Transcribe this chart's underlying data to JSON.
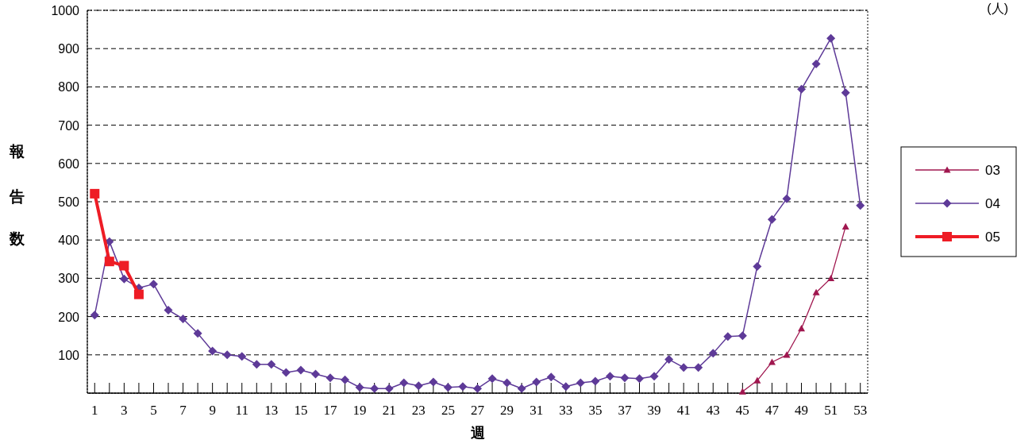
{
  "chart_data": {
    "type": "line",
    "xlabel": "週",
    "ylabel": "報告数",
    "annotations": [
      "(人)"
    ],
    "xlim": [
      0.5,
      53.5
    ],
    "xticks": [
      1,
      {
        "value": 2,
        "label": null
      },
      3,
      {
        "value": 4,
        "label": null
      },
      5,
      {
        "value": 6,
        "label": null
      },
      7,
      {
        "value": 8,
        "label": null
      },
      9,
      {
        "value": 10,
        "label": null
      },
      11,
      {
        "value": 12,
        "label": null
      },
      13,
      {
        "value": 14,
        "label": null
      },
      15,
      {
        "value": 16,
        "label": null
      },
      17,
      {
        "value": 18,
        "label": null
      },
      19,
      {
        "value": 20,
        "label": null
      },
      21,
      {
        "value": 22,
        "label": null
      },
      23,
      {
        "value": 24,
        "label": null
      },
      25,
      {
        "value": 26,
        "label": null
      },
      27,
      {
        "value": 28,
        "label": null
      },
      29,
      {
        "value": 30,
        "label": null
      },
      31,
      {
        "value": 32,
        "label": null
      },
      33,
      {
        "value": 34,
        "label": null
      },
      35,
      {
        "value": 36,
        "label": null
      },
      37,
      {
        "value": 38,
        "label": null
      },
      39,
      {
        "value": 40,
        "label": null
      },
      41,
      {
        "value": 42,
        "label": null
      },
      43,
      {
        "value": 44,
        "label": null
      },
      45,
      {
        "value": 46,
        "label": null
      },
      47,
      {
        "value": 48,
        "label": null
      },
      49,
      {
        "value": 50,
        "label": null
      },
      51,
      {
        "value": 52,
        "label": null
      },
      53
    ],
    "ylim": [
      0,
      1000
    ],
    "yticks": [
      100,
      200,
      300,
      400,
      500,
      600,
      700,
      800,
      900,
      1000
    ],
    "grid": "y",
    "legend": "right",
    "line_style": "solid",
    "series": [
      {
        "name": "03",
        "color": "#a0174f",
        "marker": "triangle",
        "x": [
          45,
          46,
          47,
          48,
          49,
          50,
          51,
          52
        ],
        "values": [
          4,
          33,
          81,
          100,
          169,
          263,
          300,
          435
        ]
      },
      {
        "name": "04",
        "color": "#5e3a98",
        "marker": "diamond",
        "x": [
          1,
          2,
          3,
          4,
          5,
          6,
          7,
          8,
          9,
          10,
          11,
          12,
          13,
          14,
          15,
          16,
          17,
          18,
          19,
          20,
          21,
          22,
          23,
          24,
          25,
          26,
          27,
          28,
          29,
          30,
          31,
          32,
          33,
          34,
          35,
          36,
          37,
          38,
          39,
          40,
          41,
          42,
          43,
          44,
          45,
          46,
          47,
          48,
          49,
          50,
          51,
          52,
          53
        ],
        "values": [
          204,
          396,
          298,
          275,
          285,
          217,
          194,
          156,
          110,
          100,
          96,
          75,
          75,
          54,
          60,
          50,
          40,
          35,
          15,
          12,
          12,
          27,
          19,
          29,
          15,
          17,
          12,
          38,
          27,
          12,
          29,
          42,
          17,
          27,
          31,
          44,
          40,
          38,
          44,
          88,
          67,
          67,
          104,
          148,
          150,
          331,
          454,
          508,
          794,
          860,
          927,
          785,
          490
        ]
      },
      {
        "name": "05",
        "color": "#ee1c25",
        "marker": "square",
        "x": [
          1,
          2,
          3,
          4
        ],
        "values": [
          521,
          344,
          333,
          258
        ]
      }
    ]
  }
}
